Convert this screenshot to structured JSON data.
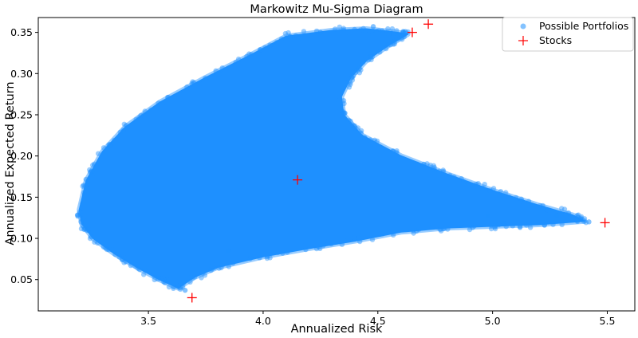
{
  "chart_data": {
    "type": "scatter",
    "title": "Markowitz Mu-Sigma Diagram",
    "xlabel": "Annualized Risk",
    "ylabel": "Annualized Expected Return",
    "xlim": [
      3.02,
      5.62
    ],
    "ylim": [
      0.012,
      0.368
    ],
    "xticks": [
      3.5,
      4.0,
      4.5,
      5.0,
      5.5
    ],
    "yticks": [
      0.05,
      0.1,
      0.15,
      0.2,
      0.25,
      0.3,
      0.35
    ],
    "xtick_labels": [
      "3.5",
      "4.0",
      "4.5",
      "5.0",
      "5.5"
    ],
    "ytick_labels": [
      "0.05",
      "0.10",
      "0.15",
      "0.20",
      "0.25",
      "0.30",
      "0.35"
    ],
    "grid": false,
    "legend": {
      "position": "top-right",
      "entries": [
        "Possible Portfolios",
        "Stocks"
      ]
    },
    "series": [
      {
        "name": "Possible Portfolios",
        "marker": "circle",
        "color": "#1e90ff",
        "region_boundary": [
          [
            3.2,
            0.135
          ],
          [
            3.23,
            0.17
          ],
          [
            3.3,
            0.205
          ],
          [
            3.4,
            0.235
          ],
          [
            3.55,
            0.265
          ],
          [
            3.75,
            0.295
          ],
          [
            3.95,
            0.323
          ],
          [
            4.1,
            0.345
          ],
          [
            4.3,
            0.352
          ],
          [
            4.45,
            0.354
          ],
          [
            4.55,
            0.351
          ],
          [
            4.63,
            0.348
          ],
          [
            4.55,
            0.335
          ],
          [
            4.45,
            0.316
          ],
          [
            4.38,
            0.295
          ],
          [
            4.34,
            0.272
          ],
          [
            4.35,
            0.25
          ],
          [
            4.43,
            0.225
          ],
          [
            4.6,
            0.2
          ],
          [
            4.8,
            0.178
          ],
          [
            5.0,
            0.158
          ],
          [
            5.2,
            0.14
          ],
          [
            5.35,
            0.128
          ],
          [
            5.4,
            0.121
          ],
          [
            5.2,
            0.117
          ],
          [
            5.0,
            0.115
          ],
          [
            4.8,
            0.113
          ],
          [
            4.6,
            0.108
          ],
          [
            4.4,
            0.097
          ],
          [
            4.2,
            0.088
          ],
          [
            4.0,
            0.078
          ],
          [
            3.8,
            0.065
          ],
          [
            3.7,
            0.053
          ],
          [
            3.63,
            0.04
          ],
          [
            3.55,
            0.05
          ],
          [
            3.45,
            0.065
          ],
          [
            3.35,
            0.082
          ],
          [
            3.26,
            0.1
          ],
          [
            3.21,
            0.118
          ]
        ],
        "outliers": [
          [
            3.66,
            0.037
          ],
          [
            5.42,
            0.12
          ],
          [
            5.28,
            0.128
          ],
          [
            5.05,
            0.118
          ],
          [
            4.98,
            0.127
          ],
          [
            4.62,
            0.351
          ],
          [
            4.48,
            0.357
          ],
          [
            3.85,
            0.085
          ],
          [
            4.25,
            0.35
          ],
          [
            4.7,
            0.19
          ]
        ]
      },
      {
        "name": "Stocks",
        "marker": "plus",
        "color": "#ff0000",
        "points": [
          [
            3.69,
            0.028
          ],
          [
            4.15,
            0.171
          ],
          [
            4.65,
            0.35
          ],
          [
            4.72,
            0.36
          ],
          [
            5.49,
            0.119
          ]
        ]
      }
    ]
  }
}
